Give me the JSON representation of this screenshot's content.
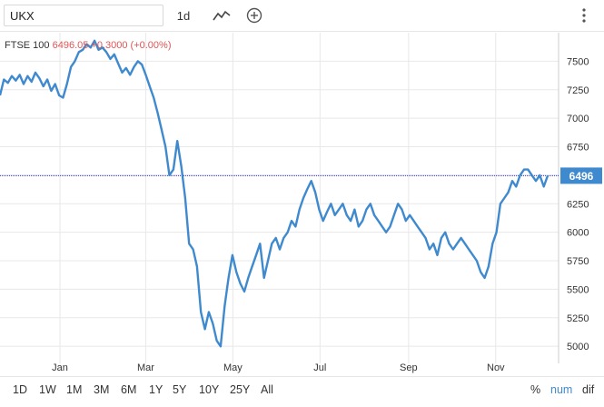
{
  "toolbar": {
    "symbol_value": "UKX",
    "interval_label": "1d",
    "icons": {
      "chart_type": "line-chart-icon",
      "compare": "plus-circle-icon",
      "menu": "vertical-dots-icon"
    }
  },
  "legend": {
    "name": "FTSE 100",
    "price": "6496.05",
    "change": "+0.3000 (+0.00%)"
  },
  "last_price_label": "6496",
  "range_buttons": [
    "1D",
    "1W",
    "1M",
    "3M",
    "6M",
    "1Y",
    "5Y",
    "10Y",
    "25Y",
    "All"
  ],
  "mode_buttons": {
    "percent": "%",
    "num": "num",
    "dif": "dif"
  },
  "colors": {
    "line": "#3f8ace",
    "last_price_bg": "#3f8ace",
    "price_text": "#e05555",
    "grid": "#e8e8e8",
    "crosshair": "#3333cc",
    "active_mode": "#3f8ace"
  },
  "chart_data": {
    "type": "line",
    "title": "",
    "xlabel": "",
    "ylabel": "",
    "x_tick_labels": [
      "Jan",
      "Mar",
      "May",
      "Jul",
      "Sep",
      "Nov"
    ],
    "y_ticks": [
      5000,
      5250,
      5500,
      5750,
      6000,
      6250,
      6500,
      6750,
      7000,
      7250,
      7500
    ],
    "ylim": [
      4850,
      7750
    ],
    "grid": true,
    "current_value_line": 6496,
    "series": [
      {
        "name": "FTSE 100",
        "x_range": [
          "2019-11-20",
          "2020-12-15"
        ],
        "values": [
          7200,
          7340,
          7310,
          7370,
          7330,
          7380,
          7300,
          7370,
          7320,
          7400,
          7350,
          7280,
          7340,
          7240,
          7300,
          7200,
          7180,
          7300,
          7450,
          7500,
          7580,
          7600,
          7650,
          7620,
          7680,
          7600,
          7620,
          7580,
          7520,
          7560,
          7480,
          7400,
          7440,
          7380,
          7450,
          7500,
          7470,
          7380,
          7280,
          7180,
          7050,
          6900,
          6750,
          6500,
          6550,
          6800,
          6580,
          6300,
          5900,
          5850,
          5700,
          5300,
          5150,
          5300,
          5200,
          5050,
          5000,
          5350,
          5600,
          5800,
          5650,
          5550,
          5480,
          5600,
          5700,
          5800,
          5900,
          5600,
          5750,
          5900,
          5950,
          5850,
          5950,
          6000,
          6100,
          6050,
          6200,
          6300,
          6380,
          6450,
          6350,
          6200,
          6100,
          6180,
          6250,
          6150,
          6200,
          6250,
          6150,
          6100,
          6200,
          6050,
          6100,
          6200,
          6250,
          6150,
          6100,
          6050,
          6000,
          6050,
          6150,
          6250,
          6200,
          6100,
          6150,
          6100,
          6050,
          6000,
          5950,
          5850,
          5900,
          5800,
          5950,
          6000,
          5900,
          5850,
          5900,
          5950,
          5900,
          5850,
          5800,
          5750,
          5650,
          5600,
          5700,
          5900,
          6000,
          6250,
          6300,
          6350,
          6450,
          6400,
          6500,
          6550,
          6550,
          6500,
          6450,
          6500,
          6400,
          6496
        ]
      }
    ]
  }
}
